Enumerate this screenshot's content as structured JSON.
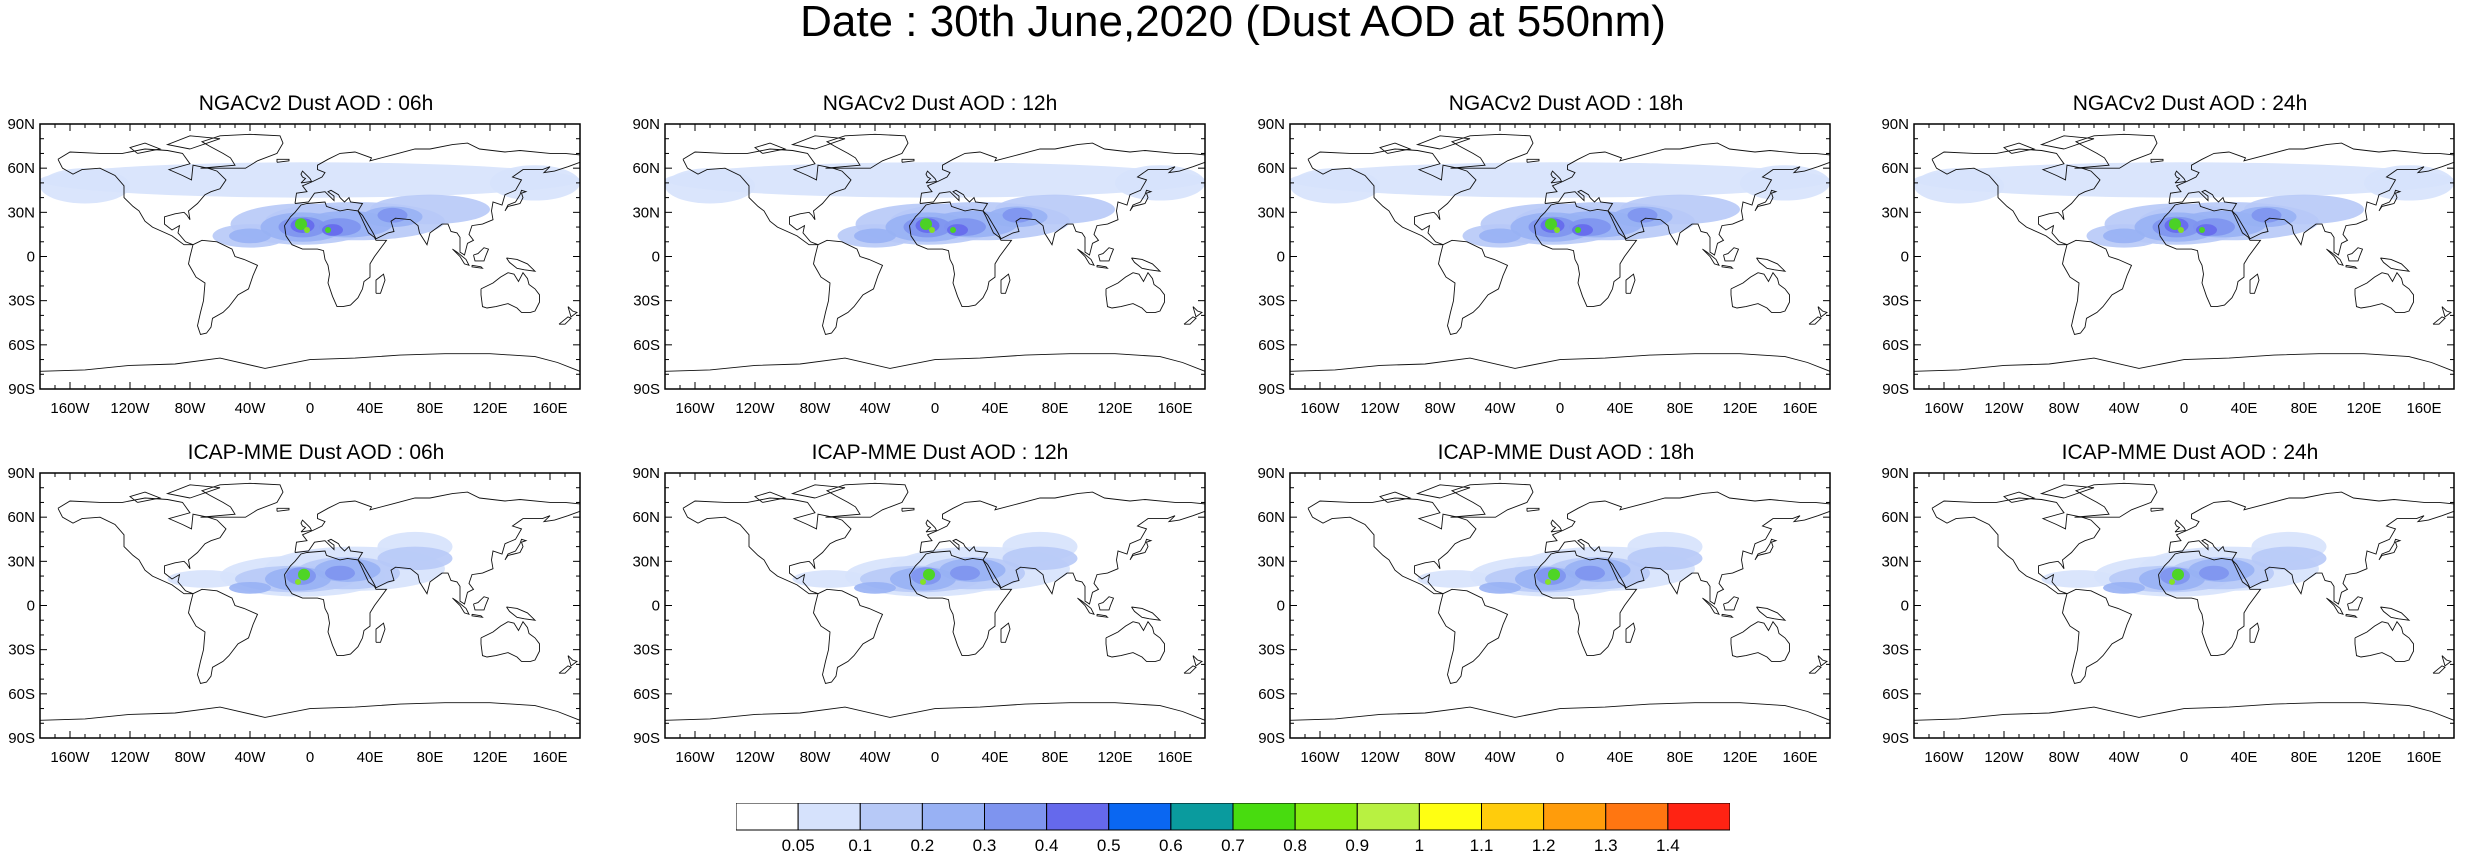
{
  "title": "Date : 30th June,2020 (Dust AOD at 550nm)",
  "panels": [
    {
      "title": "NGACv2 Dust AOD : 06h"
    },
    {
      "title": "NGACv2 Dust AOD : 12h"
    },
    {
      "title": "NGACv2 Dust AOD : 18h"
    },
    {
      "title": "NGACv2 Dust AOD : 24h"
    },
    {
      "title": "ICAP-MME Dust AOD : 06h"
    },
    {
      "title": "ICAP-MME Dust AOD : 12h"
    },
    {
      "title": "ICAP-MME Dust AOD : 18h"
    },
    {
      "title": "ICAP-MME Dust AOD : 24h"
    }
  ],
  "lat_labels": [
    "90N",
    "60N",
    "30N",
    "0",
    "30S",
    "60S",
    "90S"
  ],
  "lon_labels": [
    "160W",
    "120W",
    "80W",
    "40W",
    "0",
    "40E",
    "80E",
    "120E",
    "160E"
  ],
  "colorbar": {
    "labels": [
      "0.05",
      "0.1",
      "0.2",
      "0.3",
      "0.4",
      "0.5",
      "0.6",
      "0.7",
      "0.8",
      "0.9",
      "1",
      "1.1",
      "1.2",
      "1.3",
      "1.4"
    ],
    "colors": [
      "#ffffff",
      "#d6e2fc",
      "#b7c9f7",
      "#98b1f4",
      "#7e94ef",
      "#6569ec",
      "#0a67f2",
      "#0a9b9e",
      "#48dc0f",
      "#85ea10",
      "#b8f141",
      "#ffff12",
      "#ffcc0c",
      "#ff9c0b",
      "#ff7611",
      "#ff2313"
    ]
  },
  "map_colors": {
    "coast": "#111111"
  }
}
